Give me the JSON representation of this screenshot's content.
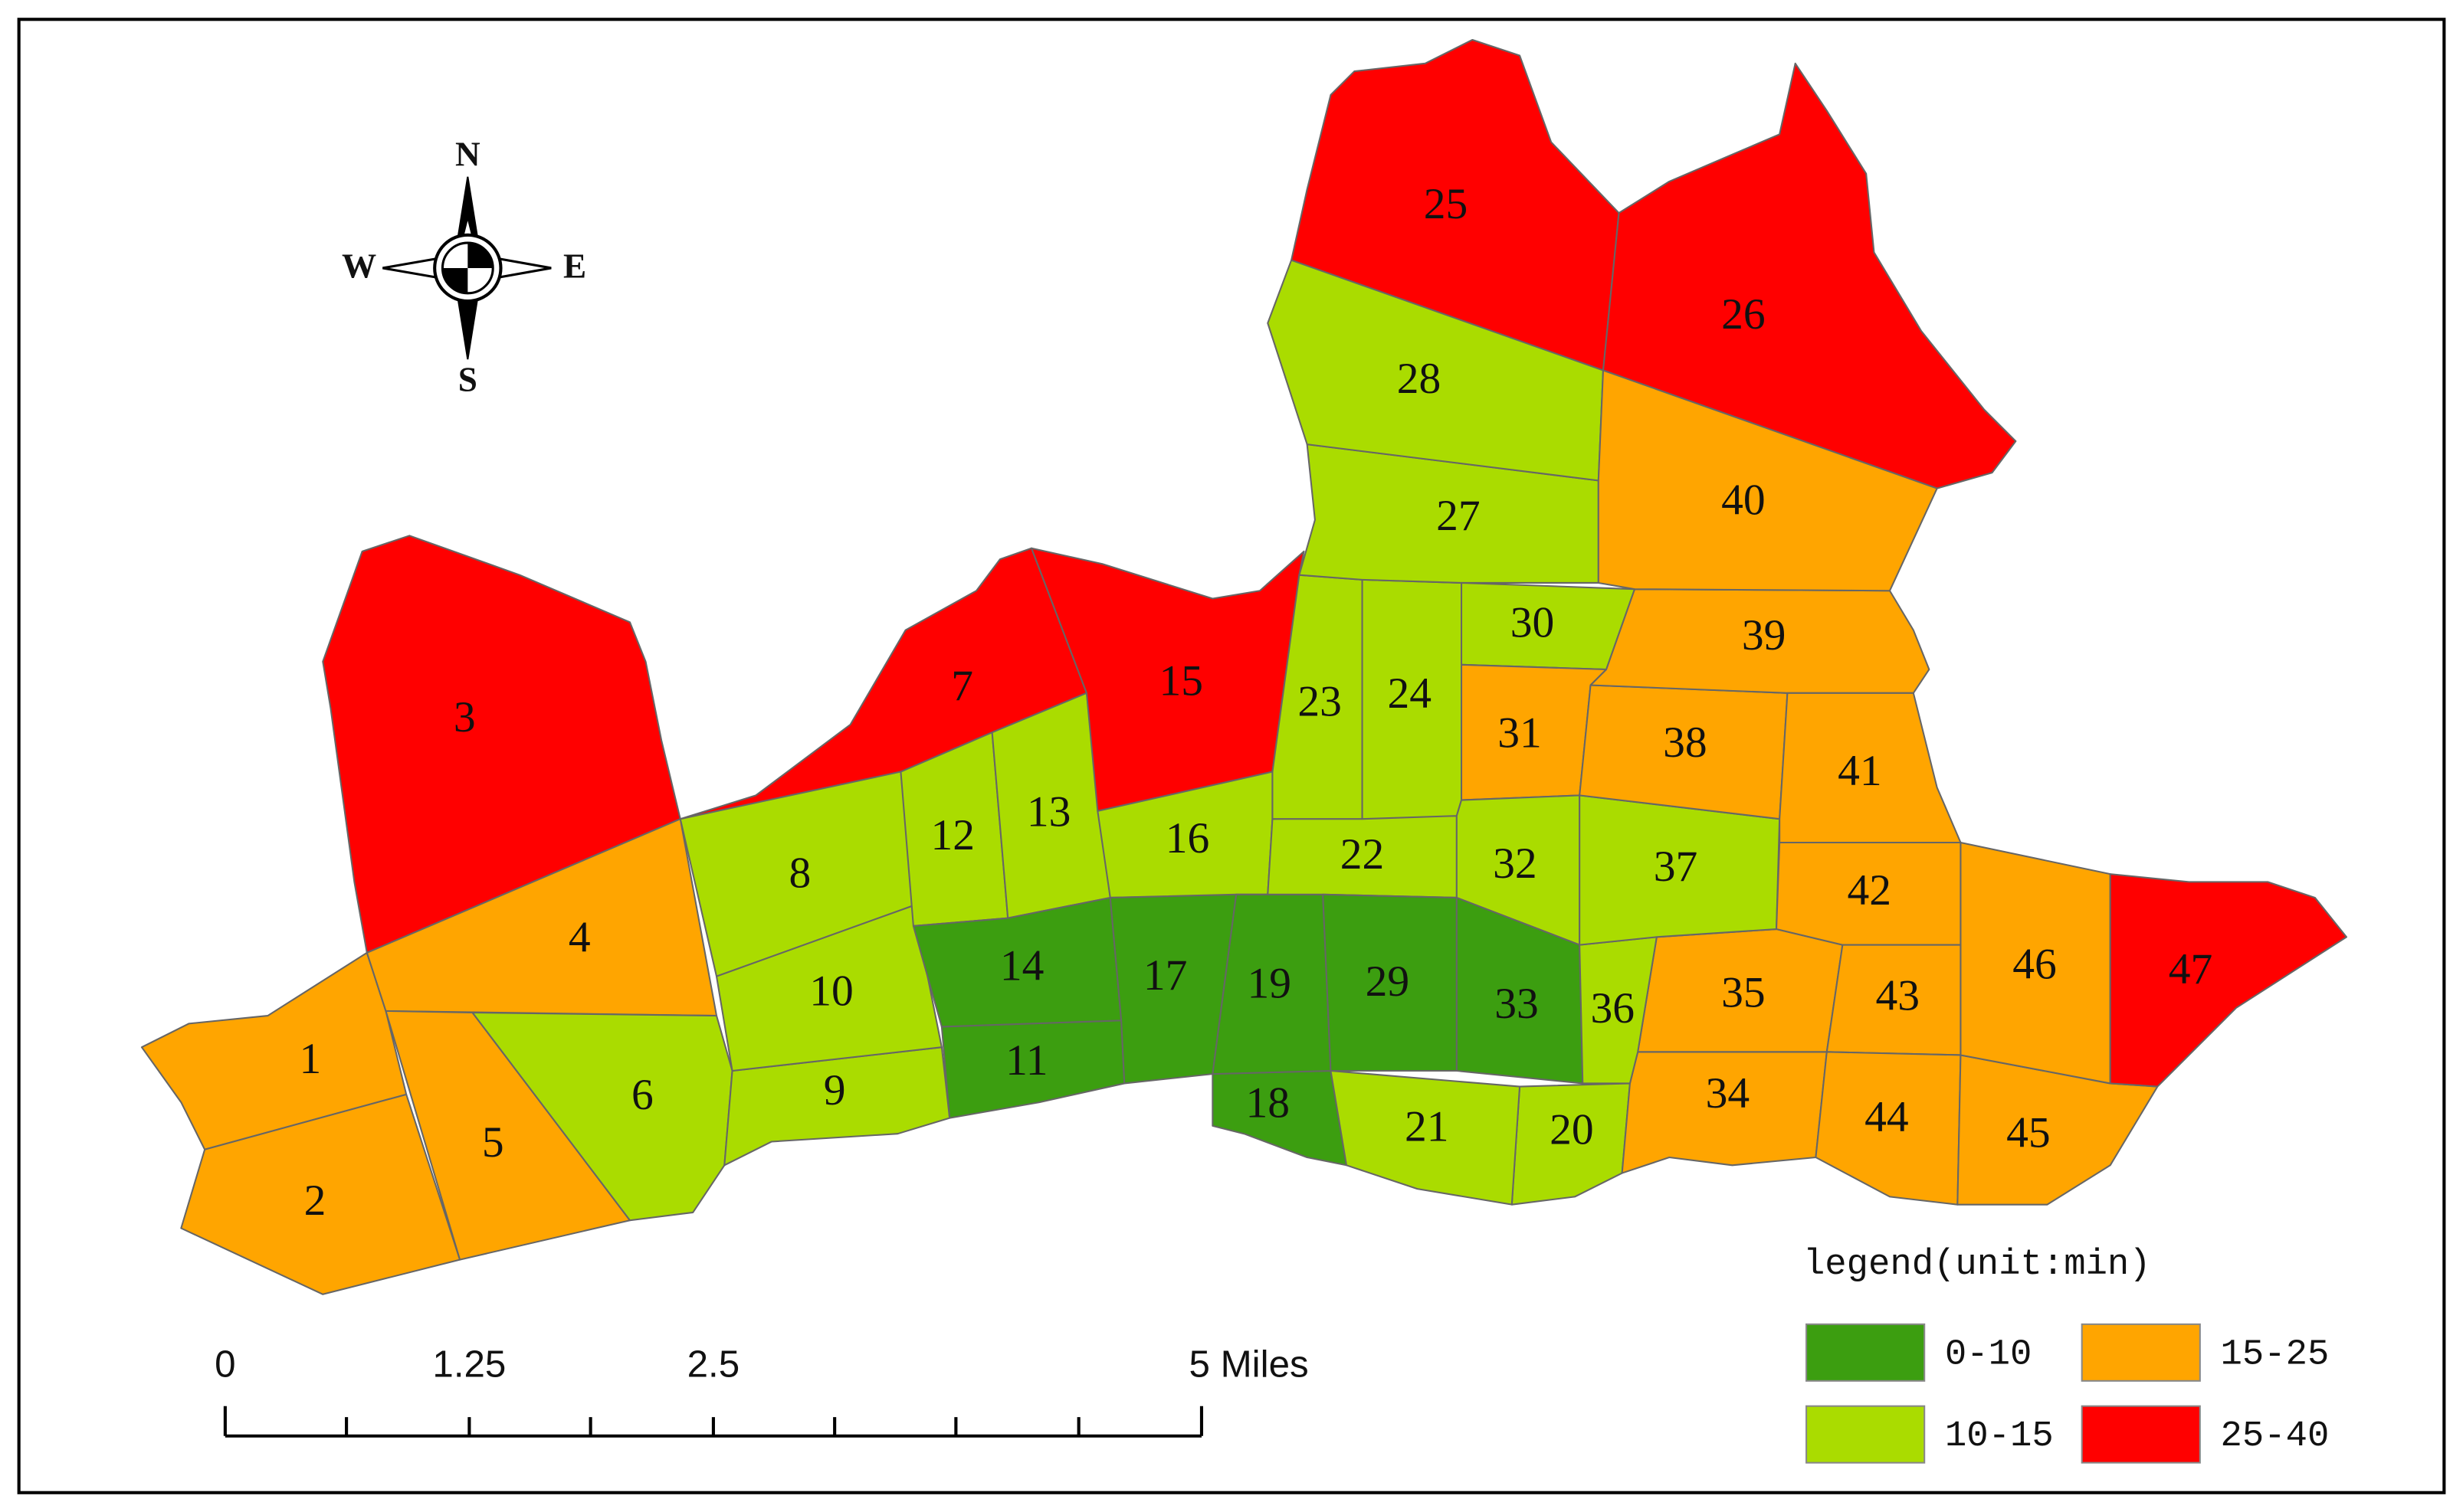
{
  "compass": {
    "north": "N",
    "east": "E",
    "south": "S",
    "west": "W"
  },
  "legend": {
    "title": "legend(unit:min)",
    "classes": [
      {
        "label": "0-10",
        "color": "#3c9e10"
      },
      {
        "label": "10-15",
        "color": "#aadc00"
      },
      {
        "label": "15-25",
        "color": "#ffa500"
      },
      {
        "label": "25-40",
        "color": "#ff0000"
      }
    ]
  },
  "scale_bar": {
    "labels": [
      "0",
      "1.25",
      "2.5",
      "5 Miles"
    ]
  },
  "zones": [
    {
      "label": "1",
      "class": 2
    },
    {
      "label": "2",
      "class": 2
    },
    {
      "label": "3",
      "class": 3
    },
    {
      "label": "4",
      "class": 2
    },
    {
      "label": "5",
      "class": 2
    },
    {
      "label": "6",
      "class": 1
    },
    {
      "label": "7",
      "class": 3
    },
    {
      "label": "8",
      "class": 1
    },
    {
      "label": "9",
      "class": 1
    },
    {
      "label": "10",
      "class": 1
    },
    {
      "label": "11",
      "class": 0
    },
    {
      "label": "12",
      "class": 1
    },
    {
      "label": "13",
      "class": 1
    },
    {
      "label": "14",
      "class": 0
    },
    {
      "label": "15",
      "class": 3
    },
    {
      "label": "16",
      "class": 1
    },
    {
      "label": "17",
      "class": 0
    },
    {
      "label": "18",
      "class": 0
    },
    {
      "label": "19",
      "class": 0
    },
    {
      "label": "20",
      "class": 1
    },
    {
      "label": "21",
      "class": 1
    },
    {
      "label": "22",
      "class": 1
    },
    {
      "label": "23",
      "class": 1
    },
    {
      "label": "24",
      "class": 1
    },
    {
      "label": "25",
      "class": 3
    },
    {
      "label": "26",
      "class": 3
    },
    {
      "label": "27",
      "class": 1
    },
    {
      "label": "28",
      "class": 1
    },
    {
      "label": "29",
      "class": 0
    },
    {
      "label": "30",
      "class": 1
    },
    {
      "label": "31",
      "class": 2
    },
    {
      "label": "32",
      "class": 1
    },
    {
      "label": "33",
      "class": 0
    },
    {
      "label": "34",
      "class": 2
    },
    {
      "label": "35",
      "class": 2
    },
    {
      "label": "36",
      "class": 1
    },
    {
      "label": "37",
      "class": 1
    },
    {
      "label": "38",
      "class": 2
    },
    {
      "label": "39",
      "class": 2
    },
    {
      "label": "40",
      "class": 2
    },
    {
      "label": "41",
      "class": 2
    },
    {
      "label": "42",
      "class": 2
    },
    {
      "label": "43",
      "class": 2
    },
    {
      "label": "44",
      "class": 2
    },
    {
      "label": "45",
      "class": 2
    },
    {
      "label": "46",
      "class": 2
    },
    {
      "label": "47",
      "class": 3
    }
  ]
}
